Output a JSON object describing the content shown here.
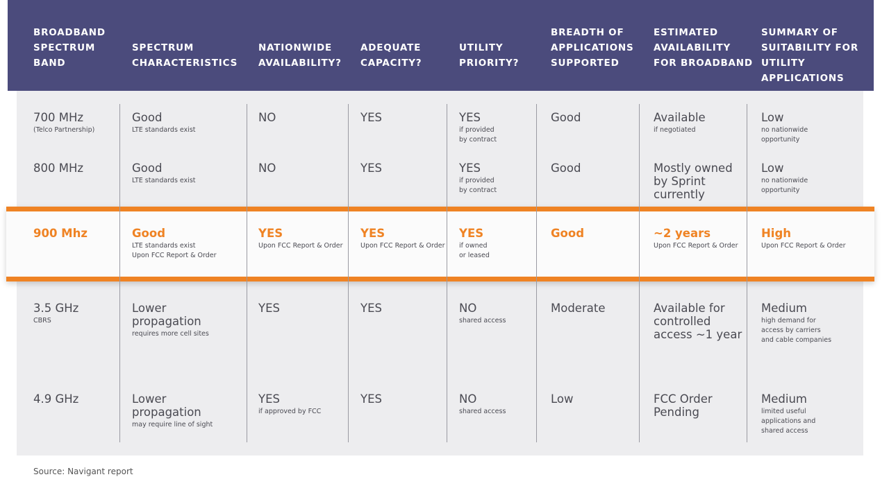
{
  "chart_data": {
    "type": "table",
    "source": "Source: Navigant report",
    "columns": [
      "BROADBAND\nSPECTRUM\nBAND",
      "SPECTRUM\nCHARACTERISTICS",
      "NATIONWIDE\nAVAILABILITY?",
      "ADEQUATE\nCAPACITY?",
      "UTILITY\nPRIORITY?",
      "BREADTH OF\nAPPLICATIONS\nSUPPORTED",
      "ESTIMATED\nAVAILABILITY\nFOR BROADBAND",
      "SUMMARY OF\nSUITABILITY FOR\nUTILITY APPLICATIONS"
    ],
    "rows": [
      {
        "highlight": false,
        "cells": [
          {
            "main": "700 MHz",
            "sub": "(Telco Partnership)"
          },
          {
            "main": "Good",
            "sub": "LTE standards exist"
          },
          {
            "main": "NO",
            "sub": ""
          },
          {
            "main": "YES",
            "sub": ""
          },
          {
            "main": "YES",
            "sub": "if provided\nby contract"
          },
          {
            "main": "Good",
            "sub": ""
          },
          {
            "main": "Available",
            "sub": "if negotiated"
          },
          {
            "main": "Low",
            "sub": "no nationwide\nopportunity"
          }
        ]
      },
      {
        "highlight": false,
        "cells": [
          {
            "main": "800 MHz",
            "sub": ""
          },
          {
            "main": "Good",
            "sub": "LTE standards exist"
          },
          {
            "main": "NO",
            "sub": ""
          },
          {
            "main": "YES",
            "sub": ""
          },
          {
            "main": "YES",
            "sub": "if provided\nby contract"
          },
          {
            "main": "Good",
            "sub": ""
          },
          {
            "main": "Mostly owned\nby Sprint\ncurrently",
            "sub": ""
          },
          {
            "main": "Low",
            "sub": "no nationwide\nopportunity"
          }
        ]
      },
      {
        "highlight": true,
        "cells": [
          {
            "main": "900 Mhz",
            "sub": ""
          },
          {
            "main": "Good",
            "sub": "LTE standards exist\nUpon FCC Report & Order"
          },
          {
            "main": "YES",
            "sub": "Upon FCC Report & Order"
          },
          {
            "main": "YES",
            "sub": "Upon FCC Report & Order"
          },
          {
            "main": "YES",
            "sub": "if owned\nor leased"
          },
          {
            "main": "Good",
            "sub": ""
          },
          {
            "main": "~2 years",
            "sub": "Upon FCC Report & Order"
          },
          {
            "main": "High",
            "sub": "Upon FCC Report & Order"
          }
        ]
      },
      {
        "highlight": false,
        "cells": [
          {
            "main": "3.5 GHz",
            "sub": "CBRS"
          },
          {
            "main": "Lower\npropagation",
            "sub": "requires more cell sites"
          },
          {
            "main": "YES",
            "sub": ""
          },
          {
            "main": "YES",
            "sub": ""
          },
          {
            "main": "NO",
            "sub": "shared access"
          },
          {
            "main": "Moderate",
            "sub": ""
          },
          {
            "main": "Available for\ncontrolled\naccess ~1 year",
            "sub": ""
          },
          {
            "main": "Medium",
            "sub": "high demand for\naccess by carriers\nand cable companies"
          }
        ]
      },
      {
        "highlight": false,
        "cells": [
          {
            "main": "4.9 GHz",
            "sub": ""
          },
          {
            "main": "Lower\npropagation",
            "sub": "may require line of sight"
          },
          {
            "main": "YES",
            "sub": "if approved by FCC"
          },
          {
            "main": "YES",
            "sub": ""
          },
          {
            "main": "NO",
            "sub": "shared access"
          },
          {
            "main": "Low",
            "sub": ""
          },
          {
            "main": "FCC Order\nPending",
            "sub": ""
          },
          {
            "main": "Medium",
            "sub": "limited useful\napplications and\nshared access"
          }
        ]
      }
    ],
    "colors": {
      "header": "#4b4b7c",
      "highlight": "#ef8324",
      "body": "#ededef",
      "text": "#4a4a52"
    }
  }
}
